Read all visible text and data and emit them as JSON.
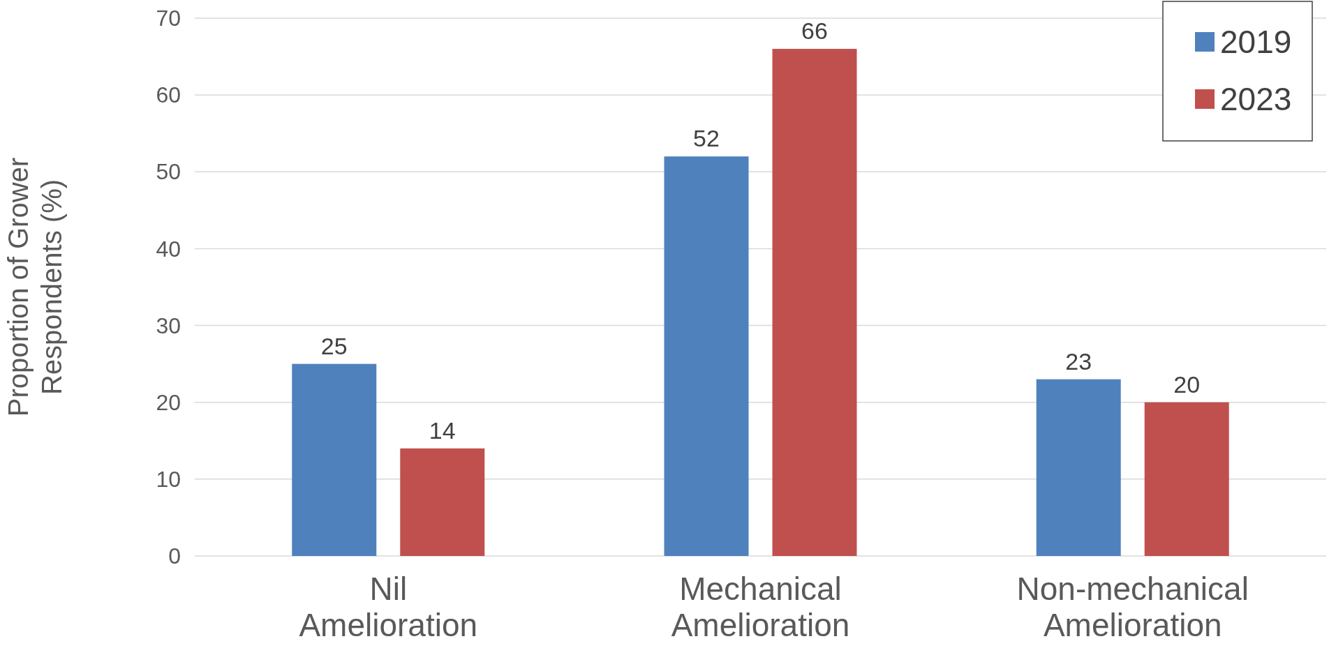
{
  "chart_data": {
    "type": "bar",
    "ylabel": "Proportion of Grower Respondents (%)",
    "categories": [
      "Nil Amelioration",
      "Mechanical Amelioration",
      "Non-mechanical Amelioration"
    ],
    "series": [
      {
        "name": "2019",
        "color": "#4f81bd",
        "values": [
          25,
          52,
          23
        ]
      },
      {
        "name": "2023",
        "color": "#c0504d",
        "values": [
          14,
          66,
          20
        ]
      }
    ],
    "ylim": [
      0,
      70
    ],
    "yticks": [
      0,
      10,
      20,
      30,
      40,
      50,
      60,
      70
    ],
    "grid": "y",
    "legend": "top right",
    "data_labels": true
  }
}
